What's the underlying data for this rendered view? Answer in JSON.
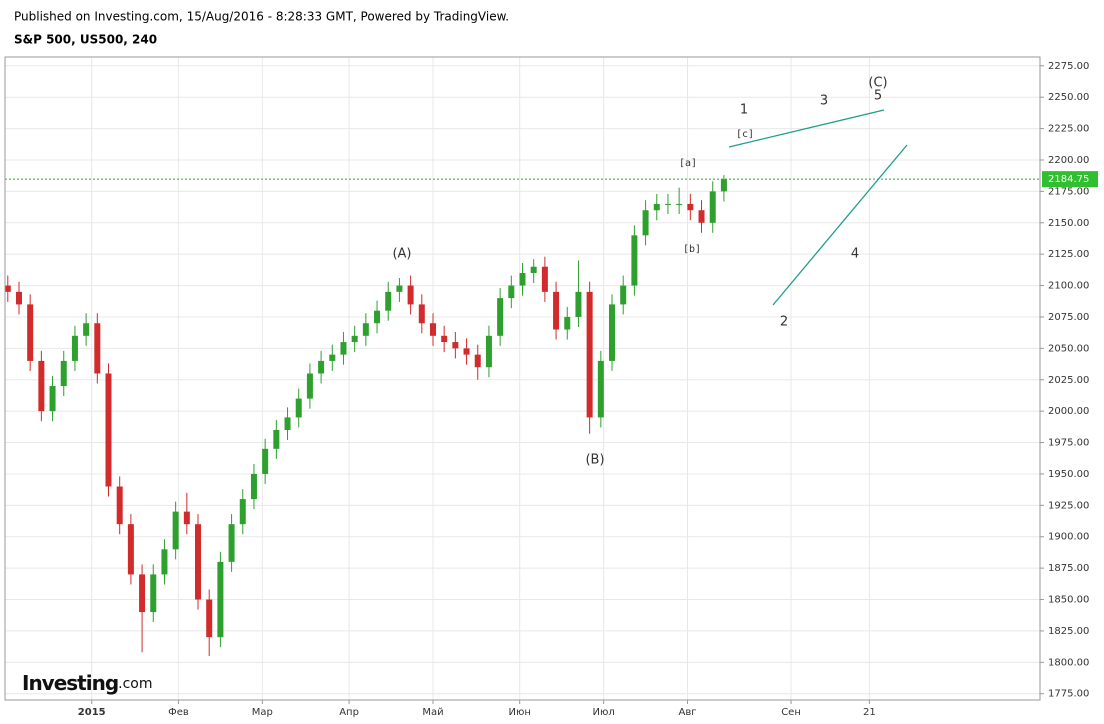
{
  "chart_data": {
    "type": "candlestick",
    "header": "Published on Investing.com, 15/Aug/2016 - 8:28:33 GMT, Powered by TradingView.",
    "title": "S&P 500, US500, 240",
    "logo": {
      "name": "Investing",
      "suffix": ".com"
    },
    "up_color": "#2ea02e",
    "down_color": "#d12b2b",
    "grid": true,
    "x": [
      1,
      5,
      9,
      13,
      17,
      21,
      25,
      29,
      33,
      37,
      41,
      45,
      49,
      53,
      57,
      61,
      65,
      69,
      73,
      77,
      81,
      85,
      89,
      93,
      97,
      101,
      105,
      109,
      113,
      117,
      121,
      125,
      129,
      133,
      137,
      141,
      145,
      149,
      153,
      157,
      161,
      165,
      169,
      173,
      177,
      181,
      185,
      189,
      193,
      197,
      201,
      205,
      209,
      213,
      217,
      221,
      225,
      229,
      233,
      237,
      241,
      245,
      249,
      253,
      257
    ],
    "open": [
      2100,
      2095,
      2085,
      2040,
      2000,
      2020,
      2040,
      2060,
      2070,
      2030,
      1940,
      1910,
      1870,
      1840,
      1870,
      1890,
      1920,
      1910,
      1850,
      1820,
      1880,
      1910,
      1930,
      1950,
      1970,
      1985,
      1995,
      2010,
      2030,
      2040,
      2045,
      2055,
      2060,
      2070,
      2080,
      2095,
      2100,
      2085,
      2070,
      2060,
      2055,
      2050,
      2045,
      2035,
      2060,
      2090,
      2100,
      2110,
      2115,
      2095,
      2065,
      2075,
      2095,
      1995,
      2040,
      2085,
      2100,
      2140,
      2160,
      2165,
      2165,
      2165,
      2160,
      2150,
      2175
    ],
    "high": [
      2108,
      2103,
      2093,
      2048,
      2028,
      2048,
      2068,
      2078,
      2078,
      2038,
      1948,
      1918,
      1878,
      1878,
      1898,
      1928,
      1935,
      1918,
      1858,
      1888,
      1918,
      1938,
      1958,
      1978,
      1993,
      2003,
      2018,
      2038,
      2048,
      2053,
      2063,
      2068,
      2078,
      2088,
      2103,
      2106,
      2108,
      2093,
      2078,
      2068,
      2063,
      2058,
      2053,
      2068,
      2098,
      2108,
      2118,
      2121,
      2123,
      2103,
      2083,
      2120,
      2103,
      2048,
      2093,
      2108,
      2148,
      2168,
      2173,
      2173,
      2178,
      2173,
      2168,
      2183,
      2188
    ],
    "low": [
      2087,
      2077,
      2032,
      1992,
      1992,
      2012,
      2032,
      2052,
      2022,
      1932,
      1902,
      1862,
      1808,
      1832,
      1862,
      1882,
      1902,
      1842,
      1805,
      1812,
      1872,
      1902,
      1922,
      1942,
      1962,
      1977,
      1987,
      2002,
      2022,
      2032,
      2037,
      2047,
      2052,
      2062,
      2072,
      2087,
      2077,
      2062,
      2052,
      2047,
      2042,
      2037,
      2025,
      2027,
      2052,
      2082,
      2092,
      2102,
      2087,
      2057,
      2057,
      2067,
      1982,
      1987,
      2032,
      2077,
      2092,
      2132,
      2152,
      2157,
      2157,
      2152,
      2142,
      2142,
      2167
    ],
    "close": [
      2095,
      2085,
      2040,
      2000,
      2020,
      2040,
      2060,
      2070,
      2030,
      1940,
      1910,
      1870,
      1840,
      1870,
      1890,
      1920,
      1910,
      1850,
      1820,
      1880,
      1910,
      1930,
      1950,
      1970,
      1985,
      1995,
      2010,
      2030,
      2040,
      2045,
      2055,
      2060,
      2070,
      2080,
      2095,
      2100,
      2085,
      2070,
      2060,
      2055,
      2050,
      2045,
      2035,
      2060,
      2090,
      2100,
      2110,
      2115,
      2095,
      2065,
      2075,
      2095,
      1995,
      2040,
      2085,
      2100,
      2140,
      2160,
      2165,
      2165,
      2165,
      2160,
      2150,
      2175,
      2184.75
    ],
    "xlim": [
      0,
      370
    ],
    "xticks": [
      {
        "value": 31,
        "label": "2015"
      },
      {
        "value": 62,
        "label": "Фев"
      },
      {
        "value": 92,
        "label": "Мар"
      },
      {
        "value": 123,
        "label": "Апр"
      },
      {
        "value": 153,
        "label": "Май"
      },
      {
        "value": 184,
        "label": "Июн"
      },
      {
        "value": 214,
        "label": "Июл"
      },
      {
        "value": 244,
        "label": "Авг"
      },
      {
        "value": 281,
        "label": "Сен"
      },
      {
        "value": 309,
        "label": "21"
      }
    ],
    "ylim": [
      1770,
      2282
    ],
    "yticks": [
      {
        "value": 1775,
        "label": "1775.00"
      },
      {
        "value": 1800,
        "label": "1800.00"
      },
      {
        "value": 1825,
        "label": "1825.00"
      },
      {
        "value": 1850,
        "label": "1850.00"
      },
      {
        "value": 1875,
        "label": "1875.00"
      },
      {
        "value": 1900,
        "label": "1900.00"
      },
      {
        "value": 1925,
        "label": "1925.00"
      },
      {
        "value": 1950,
        "label": "1950.00"
      },
      {
        "value": 1975,
        "label": "1975.00"
      },
      {
        "value": 2000,
        "label": "2000.00"
      },
      {
        "value": 2025,
        "label": "2025.00"
      },
      {
        "value": 2050,
        "label": "2050.00"
      },
      {
        "value": 2075,
        "label": "2075.00"
      },
      {
        "value": 2100,
        "label": "2100.00"
      },
      {
        "value": 2125,
        "label": "2125.00"
      },
      {
        "value": 2150,
        "label": "2150.00"
      },
      {
        "value": 2175,
        "label": "2175.00"
      },
      {
        "value": 2200,
        "label": "2200.00"
      },
      {
        "value": 2225,
        "label": "2225.00"
      },
      {
        "value": 2250,
        "label": "2250.00"
      },
      {
        "value": 2275,
        "label": "2275.00"
      }
    ],
    "annotations": [
      "(A)",
      "(B)",
      "(C)",
      "1",
      "2",
      "3",
      "4",
      "5",
      "[a]",
      "[b]",
      "[c]"
    ]
  }
}
